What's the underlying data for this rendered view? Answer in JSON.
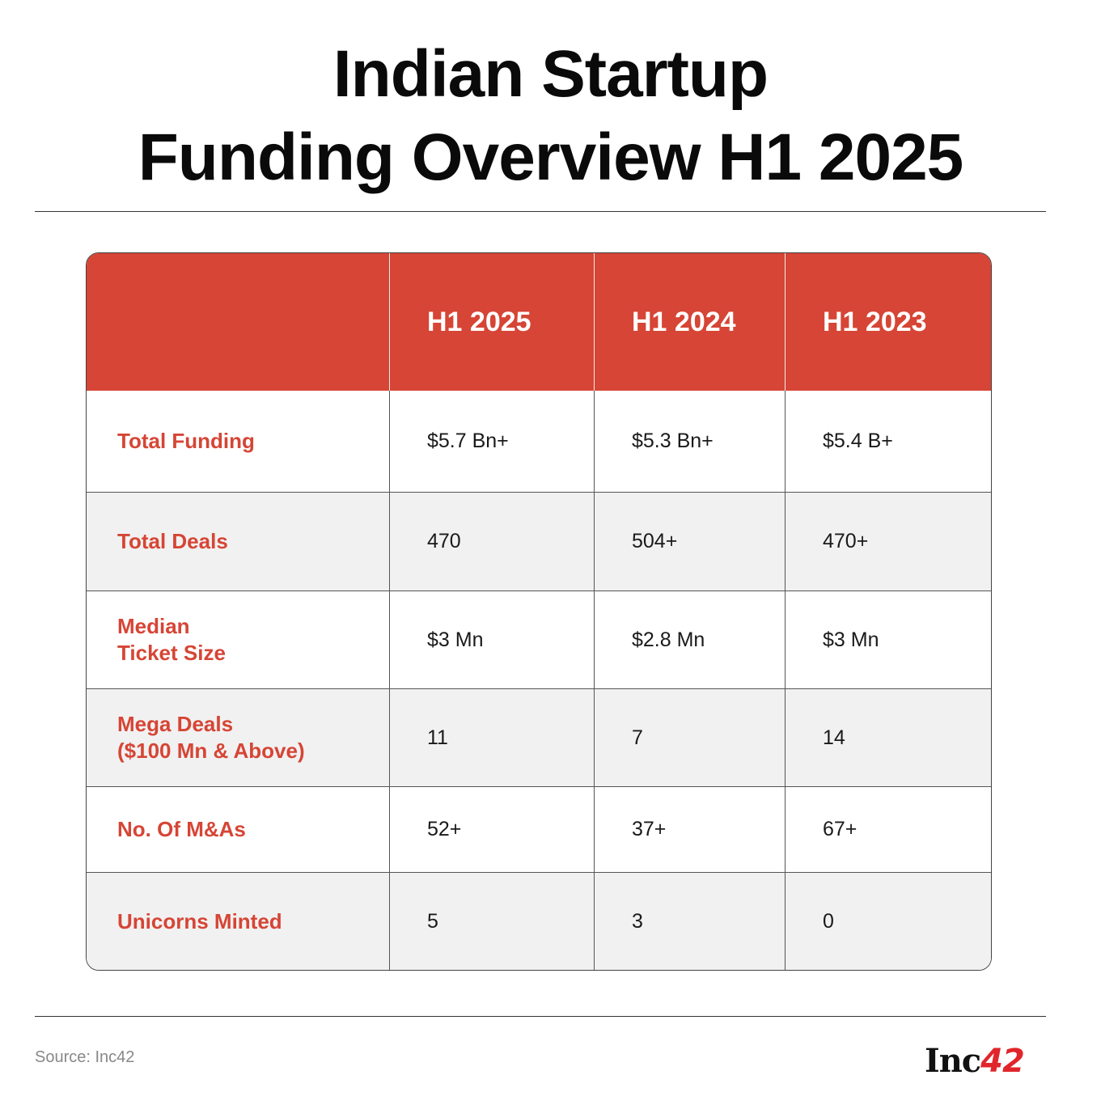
{
  "title_line1": "Indian Startup",
  "title_line2": "Funding Overview H1 2025",
  "colors": {
    "header_bg": "#d64535",
    "label_text": "#d64535",
    "alt_row_bg": "#f1f1f1"
  },
  "chart_data": {
    "type": "table",
    "columns": [
      "",
      "H1 2025",
      "H1 2024",
      "H1 2023"
    ],
    "rows": [
      {
        "label": "Total Funding",
        "values": [
          "$5.7 Bn+",
          "$5.3 Bn+",
          "$5.4 B+"
        ]
      },
      {
        "label": "Total Deals",
        "values": [
          "470",
          "504+",
          "470+"
        ]
      },
      {
        "label": "Median\nTicket Size",
        "values": [
          "$3 Mn",
          "$2.8 Mn",
          "$3 Mn"
        ]
      },
      {
        "label": "Mega Deals\n($100 Mn & Above)",
        "values": [
          "11",
          "7",
          "14"
        ]
      },
      {
        "label": "No. Of M&As",
        "values": [
          "52+",
          "37+",
          "67+"
        ]
      },
      {
        "label": "Unicorns Minted",
        "values": [
          "5",
          "3",
          "0"
        ]
      }
    ]
  },
  "footer": {
    "source": "Source: Inc42",
    "logo_text": "Inc",
    "logo_number": "42"
  }
}
